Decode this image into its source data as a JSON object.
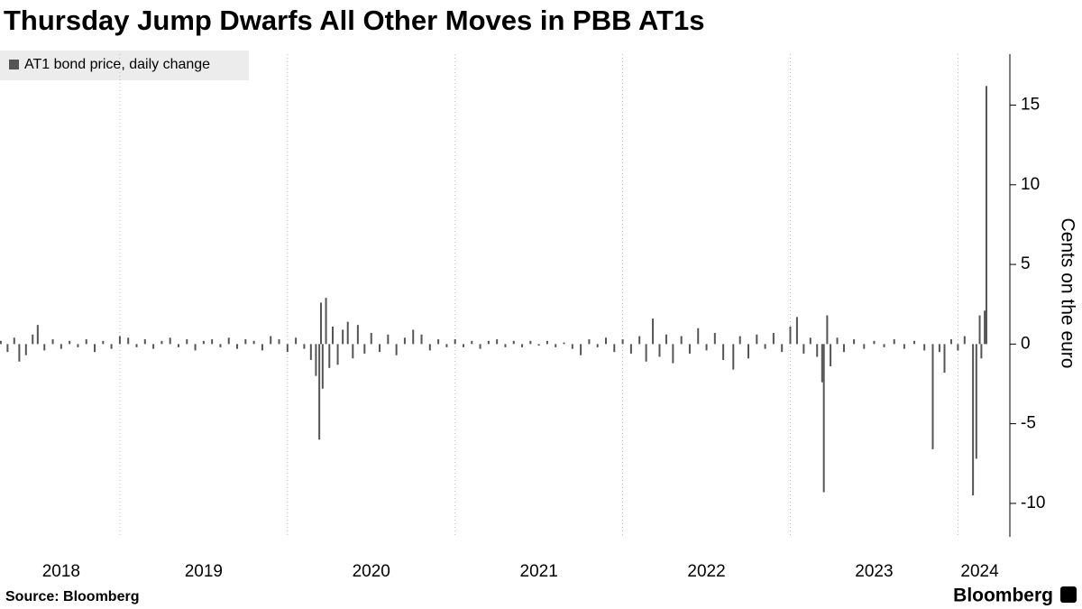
{
  "chart_data": {
    "type": "bar",
    "title": "Thursday Jump Dwarfs All Other Moves in PBB AT1s",
    "y_label": "Cents on the euro",
    "source": "Source: Bloomberg",
    "brand": "Bloomberg",
    "x": [
      2018.29,
      2018.33,
      2018.37,
      2018.4,
      2018.44,
      2018.48,
      2018.51,
      2018.55,
      2018.6,
      2018.65,
      2018.7,
      2018.75,
      2018.8,
      2018.85,
      2018.9,
      2018.95,
      2019.0,
      2019.05,
      2019.1,
      2019.15,
      2019.2,
      2019.25,
      2019.3,
      2019.35,
      2019.4,
      2019.45,
      2019.5,
      2019.55,
      2019.6,
      2019.65,
      2019.7,
      2019.75,
      2019.8,
      2019.85,
      2019.9,
      2019.95,
      2020.0,
      2020.05,
      2020.1,
      2020.14,
      2020.17,
      2020.19,
      2020.2,
      2020.21,
      2020.23,
      2020.25,
      2020.27,
      2020.3,
      2020.33,
      2020.36,
      2020.39,
      2020.42,
      2020.46,
      2020.5,
      2020.55,
      2020.6,
      2020.65,
      2020.7,
      2020.75,
      2020.8,
      2020.85,
      2020.9,
      2020.95,
      2021.0,
      2021.05,
      2021.1,
      2021.15,
      2021.2,
      2021.25,
      2021.3,
      2021.35,
      2021.4,
      2021.45,
      2021.5,
      2021.55,
      2021.6,
      2021.65,
      2021.7,
      2021.75,
      2021.8,
      2021.85,
      2021.9,
      2021.95,
      2022.0,
      2022.05,
      2022.1,
      2022.14,
      2022.18,
      2022.22,
      2022.26,
      2022.3,
      2022.35,
      2022.4,
      2022.45,
      2022.5,
      2022.55,
      2022.6,
      2022.66,
      2022.7,
      2022.75,
      2022.8,
      2022.85,
      2022.9,
      2022.95,
      2023.0,
      2023.04,
      2023.08,
      2023.12,
      2023.16,
      2023.19,
      2023.2,
      2023.22,
      2023.24,
      2023.28,
      2023.32,
      2023.38,
      2023.44,
      2023.5,
      2023.56,
      2023.62,
      2023.68,
      2023.74,
      2023.8,
      2023.85,
      2023.89,
      2023.92,
      2023.96,
      2024.0,
      2024.04,
      2024.09,
      2024.11,
      2024.13,
      2024.14,
      2024.16,
      2024.17
    ],
    "series": [
      {
        "name": "AT1 bond price, daily change",
        "color": "#555555",
        "values": [
          0.2,
          -0.5,
          0.4,
          -1.1,
          -0.7,
          0.6,
          1.2,
          -0.4,
          0.3,
          -0.3,
          0.2,
          -0.2,
          0.3,
          -0.5,
          0.2,
          -0.3,
          0.5,
          0.4,
          -0.2,
          0.3,
          -0.3,
          0.2,
          0.4,
          -0.2,
          0.3,
          -0.4,
          0.2,
          0.3,
          -0.2,
          0.4,
          -0.3,
          0.3,
          0.2,
          -0.4,
          0.5,
          0.3,
          -0.5,
          0.4,
          -0.3,
          -1.0,
          -2.0,
          -6.0,
          2.6,
          -2.8,
          2.9,
          -1.5,
          1.1,
          -1.3,
          0.9,
          1.4,
          -0.9,
          1.2,
          -0.6,
          0.7,
          -0.5,
          0.6,
          -0.7,
          0.4,
          0.9,
          0.6,
          -0.4,
          0.3,
          -0.2,
          0.3,
          -0.2,
          0.2,
          -0.3,
          0.2,
          0.3,
          -0.2,
          0.2,
          -0.2,
          0.2,
          -0.1,
          0.2,
          -0.2,
          0.1,
          -0.3,
          -0.7,
          0.3,
          -0.2,
          0.4,
          -0.5,
          0.3,
          -0.6,
          0.5,
          -1.1,
          1.6,
          -0.8,
          0.6,
          -1.2,
          0.5,
          -0.6,
          1.0,
          -0.4,
          0.7,
          -1.0,
          -1.6,
          0.5,
          -0.9,
          0.6,
          -0.3,
          0.7,
          -0.5,
          1.1,
          1.7,
          -0.6,
          0.4,
          -0.8,
          -2.4,
          -9.3,
          1.8,
          -1.4,
          0.4,
          -0.5,
          0.3,
          -0.3,
          0.2,
          -0.2,
          0.3,
          -0.3,
          0.2,
          -0.4,
          -6.6,
          -0.5,
          -1.8,
          0.3,
          -0.4,
          0.5,
          -9.5,
          -7.2,
          1.8,
          -0.9,
          2.1,
          16.2
        ]
      }
    ],
    "xlim": [
      2018.285,
      2024.31
    ],
    "xgrid": [
      2019,
      2020,
      2021,
      2022,
      2023,
      2024
    ],
    "xticks": [
      {
        "value": 2018.65,
        "label": "2018"
      },
      {
        "value": 2019.5,
        "label": "2019"
      },
      {
        "value": 2020.5,
        "label": "2020"
      },
      {
        "value": 2021.5,
        "label": "2021"
      },
      {
        "value": 2022.5,
        "label": "2022"
      },
      {
        "value": 2023.5,
        "label": "2023"
      },
      {
        "value": 2024.13,
        "label": "2024"
      }
    ],
    "ylim": [
      -12.1,
      18.2
    ],
    "yticks": [
      -10,
      -5,
      0,
      5,
      10,
      15
    ],
    "grid": true
  }
}
